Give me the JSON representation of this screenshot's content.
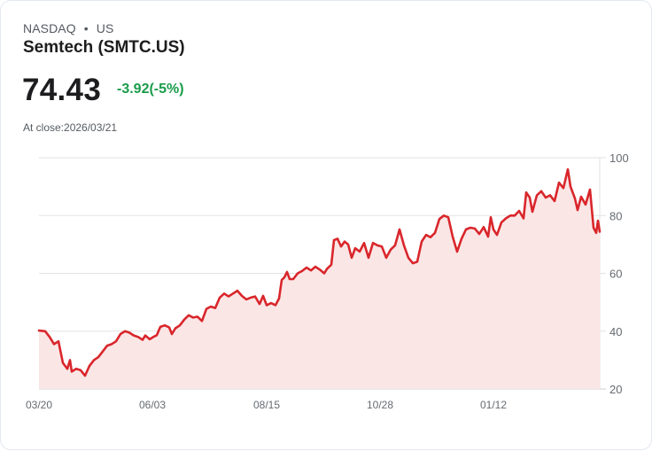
{
  "header": {
    "exchange": "NASDAQ",
    "separator": "•",
    "market": "US",
    "title": "Semtech (SMTC.US)",
    "price": "74.43",
    "change": "-3.92(-5%)",
    "at_close_label": "At close:2026/03/21"
  },
  "colors": {
    "line": "#d9262b",
    "fill": "#fbe6e6",
    "change_negative_text": "#1a9c4a",
    "grid": "#e2e2e2"
  },
  "chart_data": {
    "type": "area",
    "title": "Semtech (SMTC.US)",
    "xlabel": "",
    "ylabel": "",
    "ylim": [
      20,
      100
    ],
    "yticks": [
      20,
      40,
      60,
      80,
      100
    ],
    "xtick_labels": [
      "03/20",
      "06/03",
      "08/15",
      "10/28",
      "01/12"
    ],
    "grid": true,
    "legend": "none",
    "y_axis_position": "right",
    "note": "points are [x_position_px_from_plot_left (0-633), price]",
    "points": [
      [
        0,
        40.2
      ],
      [
        7,
        40
      ],
      [
        12,
        38
      ],
      [
        17,
        35.5
      ],
      [
        22,
        36.5
      ],
      [
        27,
        29
      ],
      [
        32,
        27
      ],
      [
        35,
        30
      ],
      [
        37,
        26
      ],
      [
        42,
        27
      ],
      [
        47,
        26.5
      ],
      [
        52,
        24.6
      ],
      [
        57,
        28
      ],
      [
        62,
        30
      ],
      [
        67,
        31
      ],
      [
        72,
        33
      ],
      [
        77,
        35
      ],
      [
        82,
        35.5
      ],
      [
        87,
        36.5
      ],
      [
        92,
        39
      ],
      [
        97,
        40
      ],
      [
        102,
        39.5
      ],
      [
        107,
        38.5
      ],
      [
        112,
        38
      ],
      [
        117,
        37
      ],
      [
        120,
        38.5
      ],
      [
        125,
        37.2
      ],
      [
        129,
        38
      ],
      [
        133,
        38.6
      ],
      [
        137,
        41.5
      ],
      [
        142,
        42
      ],
      [
        147,
        41.3
      ],
      [
        150,
        39
      ],
      [
        154,
        41
      ],
      [
        159,
        42
      ],
      [
        164,
        44
      ],
      [
        169,
        45.5
      ],
      [
        174,
        44.7
      ],
      [
        179,
        45
      ],
      [
        184,
        43.5
      ],
      [
        189,
        47.7
      ],
      [
        194,
        48.5
      ],
      [
        199,
        48
      ],
      [
        204,
        51.6
      ],
      [
        209,
        53
      ],
      [
        214,
        52
      ],
      [
        219,
        53
      ],
      [
        224,
        54
      ],
      [
        229,
        52.2
      ],
      [
        234,
        51
      ],
      [
        239,
        51.6
      ],
      [
        244,
        52
      ],
      [
        249,
        49.4
      ],
      [
        253,
        52.2
      ],
      [
        257,
        49
      ],
      [
        262,
        49.7
      ],
      [
        267,
        49
      ],
      [
        271,
        51.3
      ],
      [
        274,
        57.7
      ],
      [
        277,
        58.6
      ],
      [
        280,
        60.5
      ],
      [
        283,
        58
      ],
      [
        287,
        58
      ],
      [
        292,
        60
      ],
      [
        297,
        60.8
      ],
      [
        302,
        62
      ],
      [
        307,
        61
      ],
      [
        312,
        62.3
      ],
      [
        317,
        61.3
      ],
      [
        322,
        60
      ],
      [
        325,
        61.5
      ],
      [
        330,
        63
      ],
      [
        333,
        71.5
      ],
      [
        337,
        72
      ],
      [
        341,
        69.3
      ],
      [
        345,
        71
      ],
      [
        349,
        70
      ],
      [
        353,
        65.4
      ],
      [
        357,
        68.7
      ],
      [
        362,
        67.5
      ],
      [
        367,
        70.5
      ],
      [
        372,
        65.4
      ],
      [
        377,
        70.5
      ],
      [
        382,
        69.7
      ],
      [
        387,
        69.3
      ],
      [
        392,
        65.4
      ],
      [
        397,
        68.2
      ],
      [
        402,
        69.7
      ],
      [
        407,
        75.2
      ],
      [
        412,
        69.7
      ],
      [
        417,
        65.4
      ],
      [
        422,
        63.5
      ],
      [
        427,
        64
      ],
      [
        432,
        71
      ],
      [
        437,
        73.3
      ],
      [
        442,
        72.5
      ],
      [
        447,
        74
      ],
      [
        452,
        78.8
      ],
      [
        457,
        80
      ],
      [
        462,
        79.4
      ],
      [
        467,
        72.7
      ],
      [
        472,
        67.5
      ],
      [
        477,
        72
      ],
      [
        482,
        75.2
      ],
      [
        487,
        75.8
      ],
      [
        492,
        75.5
      ],
      [
        497,
        73.6
      ],
      [
        502,
        76
      ],
      [
        507,
        72.7
      ],
      [
        510,
        79.4
      ],
      [
        513,
        75.2
      ],
      [
        517,
        73.3
      ],
      [
        522,
        77.6
      ],
      [
        527,
        79
      ],
      [
        532,
        80
      ],
      [
        537,
        80
      ],
      [
        542,
        81.6
      ],
      [
        547,
        79
      ],
      [
        550,
        88
      ],
      [
        554,
        86.2
      ],
      [
        557,
        81.3
      ],
      [
        562,
        87
      ],
      [
        567,
        88.4
      ],
      [
        572,
        86.2
      ],
      [
        577,
        87
      ],
      [
        582,
        85
      ],
      [
        587,
        91.4
      ],
      [
        592,
        89.5
      ],
      [
        597,
        96
      ],
      [
        600,
        90
      ],
      [
        605,
        85.9
      ],
      [
        608,
        81.9
      ],
      [
        612,
        86.5
      ],
      [
        617,
        83.8
      ],
      [
        622,
        89
      ],
      [
        626,
        75.8
      ],
      [
        629,
        74
      ],
      [
        631,
        78.2
      ],
      [
        633,
        74.4
      ]
    ]
  }
}
